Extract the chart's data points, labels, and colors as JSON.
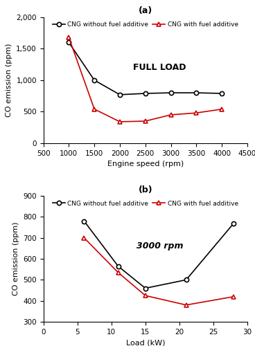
{
  "panel_a": {
    "title": "(a)",
    "xlabel": "Engine speed (rpm)",
    "ylabel": "CO emission (ppm)",
    "xlim": [
      500,
      4500
    ],
    "ylim": [
      0,
      2000
    ],
    "xticks": [
      500,
      1000,
      1500,
      2000,
      2500,
      3000,
      3500,
      4000,
      4500
    ],
    "yticks": [
      0,
      500,
      1000,
      1500,
      2000
    ],
    "annotation": "FULL LOAD",
    "annotation_italic": false,
    "legend_ncol": 2,
    "cng_without": {
      "x": [
        1000,
        1500,
        2000,
        2500,
        3000,
        3500,
        4000
      ],
      "y": [
        1600,
        1000,
        770,
        790,
        800,
        800,
        790
      ],
      "color": "black",
      "label": "CNG without fuel additive"
    },
    "cng_with": {
      "x": [
        1000,
        1500,
        2000,
        2500,
        3000,
        3500,
        4000
      ],
      "y": [
        1680,
        540,
        340,
        350,
        450,
        480,
        540
      ],
      "color": "#cc0000",
      "label": "CNG with fuel additive"
    }
  },
  "panel_b": {
    "title": "(b)",
    "xlabel": "Load (kW)",
    "ylabel": "CO emission (ppm)",
    "xlim": [
      0,
      30
    ],
    "ylim": [
      300,
      900
    ],
    "xticks": [
      0,
      5,
      10,
      15,
      20,
      25,
      30
    ],
    "yticks": [
      300,
      400,
      500,
      600,
      700,
      800,
      900
    ],
    "annotation": "3000 rpm",
    "annotation_italic": true,
    "legend_ncol": 2,
    "cng_without": {
      "x": [
        6,
        11,
        15,
        21,
        28
      ],
      "y": [
        780,
        565,
        460,
        500,
        770
      ],
      "color": "black",
      "label": "CNG without fuel additive"
    },
    "cng_with": {
      "x": [
        6,
        11,
        15,
        21,
        28
      ],
      "y": [
        700,
        535,
        425,
        380,
        420
      ],
      "color": "#cc0000",
      "label": "CNG with fuel additive"
    }
  }
}
